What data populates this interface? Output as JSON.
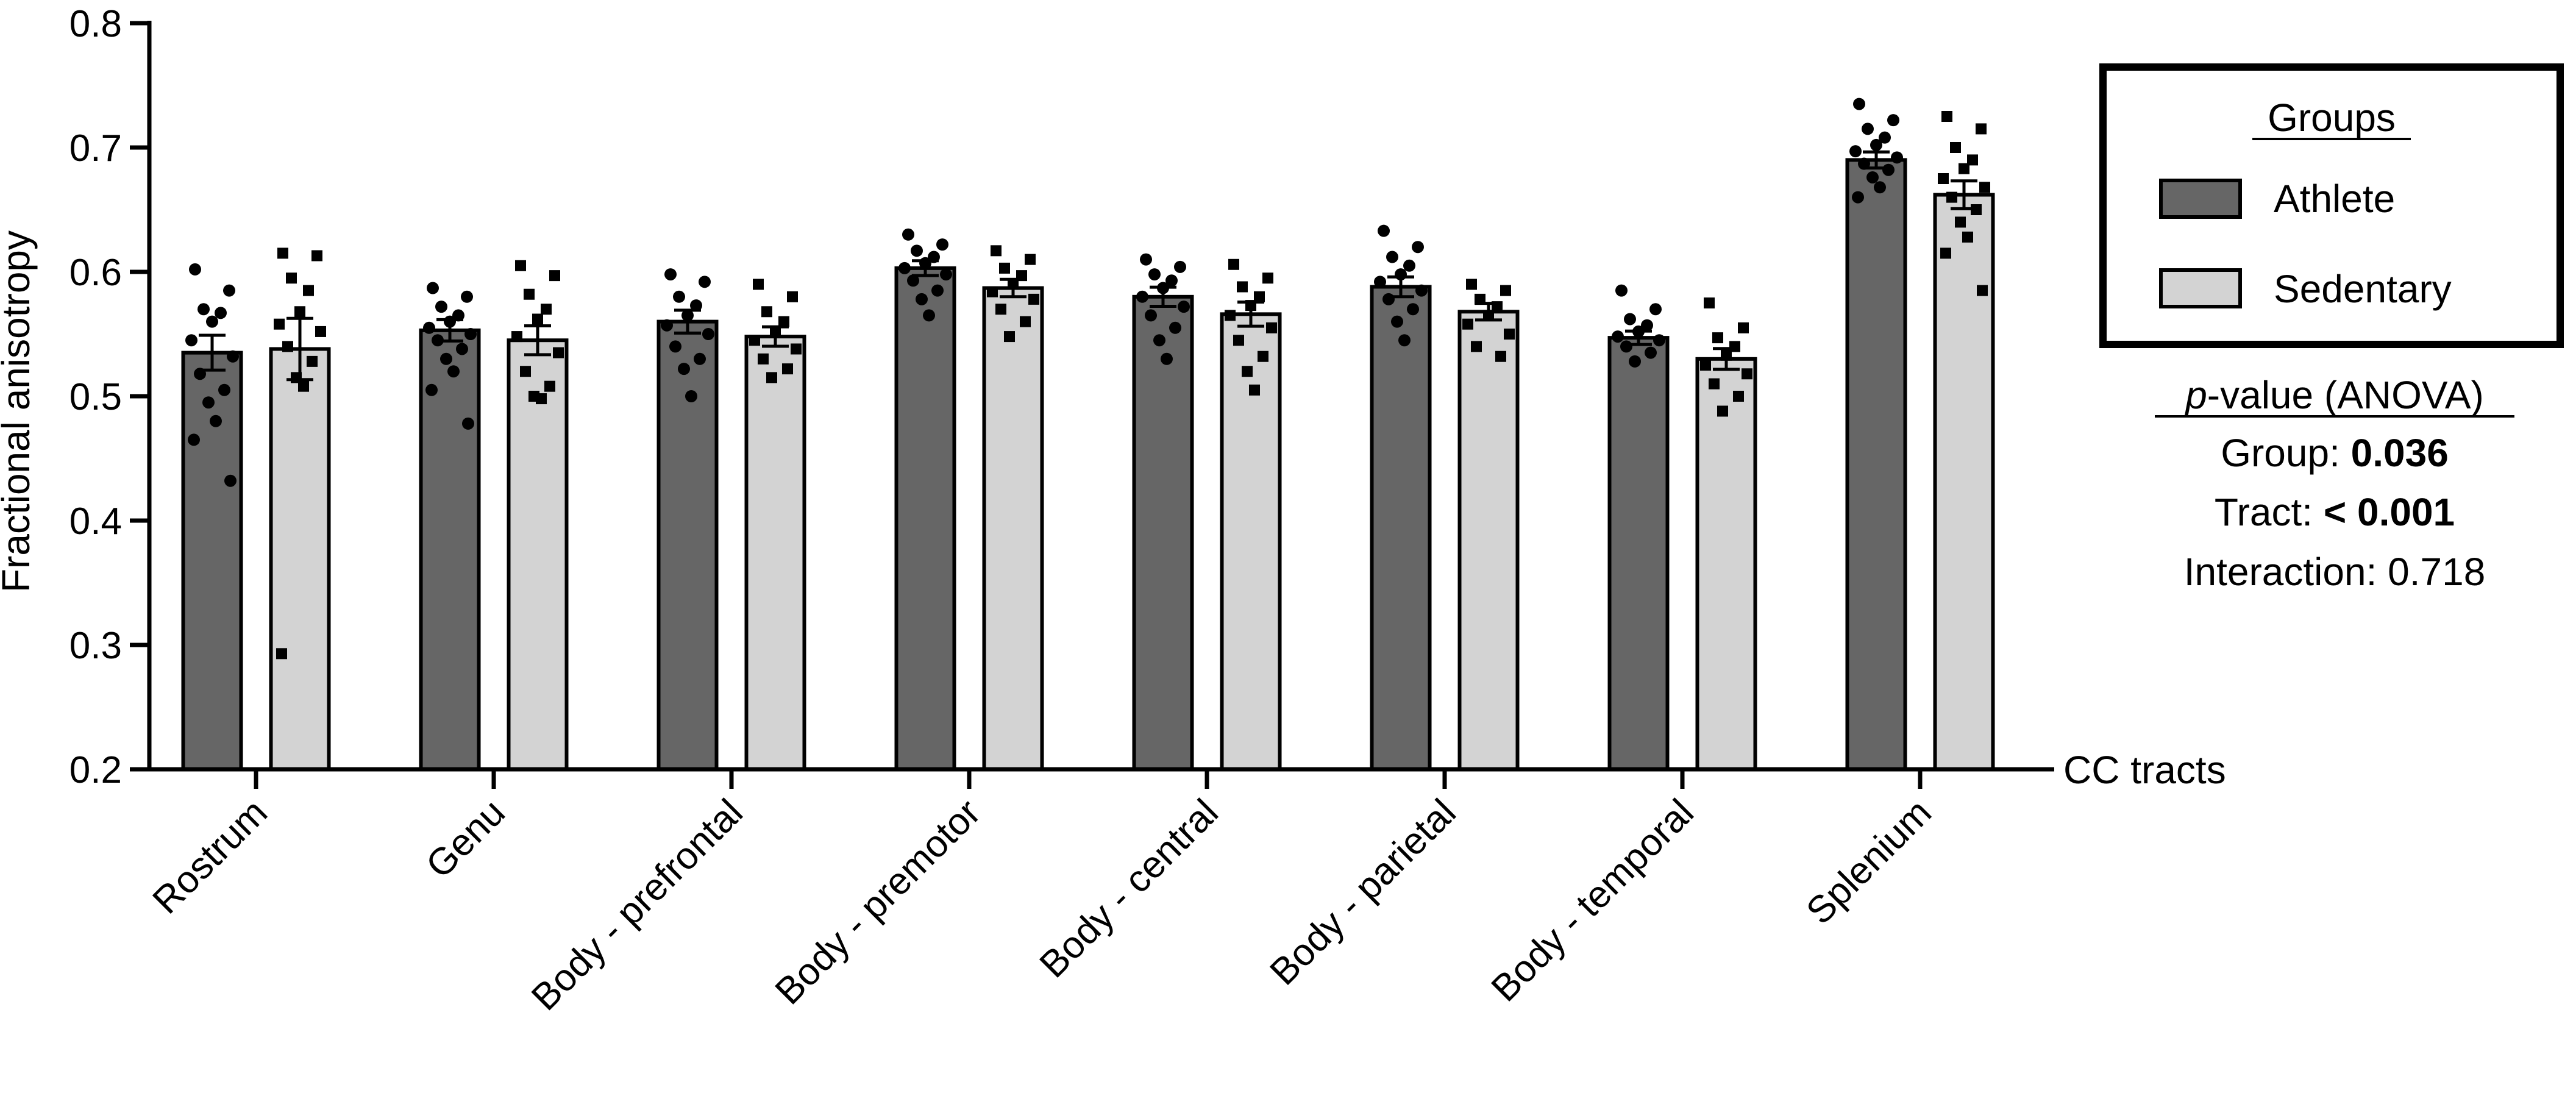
{
  "chart_data": {
    "type": "bar",
    "xlabel": "CC tracts",
    "ylabel": "Fractional anisotropy",
    "ylim": [
      0.2,
      0.8
    ],
    "yticks": [
      "0.2",
      "0.3",
      "0.4",
      "0.5",
      "0.6",
      "0.7",
      "0.8"
    ],
    "categories": [
      "Rostrum",
      "Genu",
      "Body - prefrontal",
      "Body - premotor",
      "Body - central",
      "Body - parietal",
      "Body - temporal",
      "Splenium"
    ],
    "legend_position": "top-right",
    "legend_title": "Groups",
    "series": [
      {
        "name": "Athlete",
        "color": "#666666",
        "marker": "circle",
        "values": [
          0.535,
          0.553,
          0.56,
          0.603,
          0.58,
          0.588,
          0.547,
          0.69
        ],
        "points": [
          [
            0.602,
            0.585,
            0.57,
            0.567,
            0.56,
            0.545,
            0.532,
            0.518,
            0.505,
            0.495,
            0.48,
            0.465,
            0.432
          ],
          [
            0.587,
            0.58,
            0.572,
            0.565,
            0.56,
            0.555,
            0.55,
            0.545,
            0.538,
            0.53,
            0.52,
            0.505,
            0.478
          ],
          [
            0.598,
            0.592,
            0.58,
            0.573,
            0.565,
            0.557,
            0.55,
            0.54,
            0.53,
            0.522,
            0.5
          ],
          [
            0.63,
            0.622,
            0.617,
            0.612,
            0.607,
            0.603,
            0.598,
            0.593,
            0.585,
            0.578,
            0.565
          ],
          [
            0.61,
            0.604,
            0.598,
            0.593,
            0.587,
            0.58,
            0.572,
            0.565,
            0.555,
            0.545,
            0.53
          ],
          [
            0.633,
            0.62,
            0.612,
            0.605,
            0.598,
            0.592,
            0.585,
            0.578,
            0.57,
            0.56,
            0.545
          ],
          [
            0.585,
            0.57,
            0.562,
            0.557,
            0.552,
            0.548,
            0.545,
            0.54,
            0.535,
            0.528
          ],
          [
            0.735,
            0.722,
            0.715,
            0.708,
            0.702,
            0.697,
            0.692,
            0.687,
            0.682,
            0.676,
            0.668,
            0.66
          ]
        ]
      },
      {
        "name": "Sedentary",
        "color": "#d3d3d3",
        "marker": "square",
        "values": [
          0.538,
          0.545,
          0.548,
          0.587,
          0.566,
          0.568,
          0.53,
          0.662
        ],
        "points": [
          [
            0.615,
            0.613,
            0.595,
            0.585,
            0.568,
            0.558,
            0.552,
            0.54,
            0.528,
            0.515,
            0.508,
            0.293
          ],
          [
            0.605,
            0.597,
            0.582,
            0.57,
            0.562,
            0.548,
            0.535,
            0.52,
            0.508,
            0.5,
            0.498
          ],
          [
            0.59,
            0.58,
            0.568,
            0.56,
            0.552,
            0.545,
            0.538,
            0.53,
            0.522,
            0.515
          ],
          [
            0.617,
            0.61,
            0.603,
            0.597,
            0.59,
            0.584,
            0.578,
            0.57,
            0.56,
            0.548
          ],
          [
            0.606,
            0.595,
            0.588,
            0.58,
            0.573,
            0.565,
            0.555,
            0.545,
            0.532,
            0.52,
            0.505
          ],
          [
            0.59,
            0.585,
            0.578,
            0.572,
            0.565,
            0.558,
            0.55,
            0.54,
            0.532
          ],
          [
            0.575,
            0.555,
            0.547,
            0.54,
            0.533,
            0.525,
            0.518,
            0.51,
            0.5,
            0.488
          ],
          [
            0.725,
            0.715,
            0.7,
            0.69,
            0.683,
            0.675,
            0.668,
            0.66,
            0.65,
            0.64,
            0.628,
            0.615,
            0.585
          ]
        ]
      }
    ],
    "annotations": {
      "title_prefix": "p",
      "title_suffix": "-value (ANOVA)",
      "group_label": "Group: ",
      "group_value": "0.036",
      "tract_label": "Tract: ",
      "tract_value": "< 0.001",
      "interaction_label": "Interaction: 0.718"
    }
  }
}
